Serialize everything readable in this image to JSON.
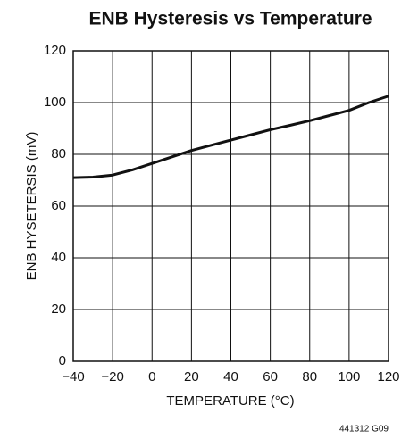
{
  "chart_data": {
    "type": "line",
    "title": "ENB Hysteresis vs Temperature",
    "x_label": "TEMPERATURE (°C)",
    "y_label": "ENB HYSETERSIS (mV)",
    "note": "441312 G09",
    "x": [
      -40,
      -30,
      -20,
      -10,
      0,
      10,
      20,
      30,
      40,
      50,
      60,
      70,
      80,
      90,
      100,
      110,
      120
    ],
    "series": [
      {
        "name": "ENB Hysteresis",
        "color": "#111111",
        "values": [
          71,
          71.2,
          72,
          74,
          76.5,
          79,
          81.5,
          83.5,
          85.5,
          87.5,
          89.5,
          91.2,
          93,
          95,
          97,
          100,
          102.5
        ]
      }
    ],
    "xlim": [
      -40,
      120
    ],
    "xticks": [
      {
        "value": -40,
        "label": "−40"
      },
      {
        "value": -20,
        "label": "−20"
      },
      0,
      20,
      40,
      60,
      80,
      100,
      120
    ],
    "ylim": [
      0,
      120
    ],
    "yticks": [
      0,
      20,
      40,
      60,
      80,
      100,
      120
    ],
    "grid": true
  }
}
